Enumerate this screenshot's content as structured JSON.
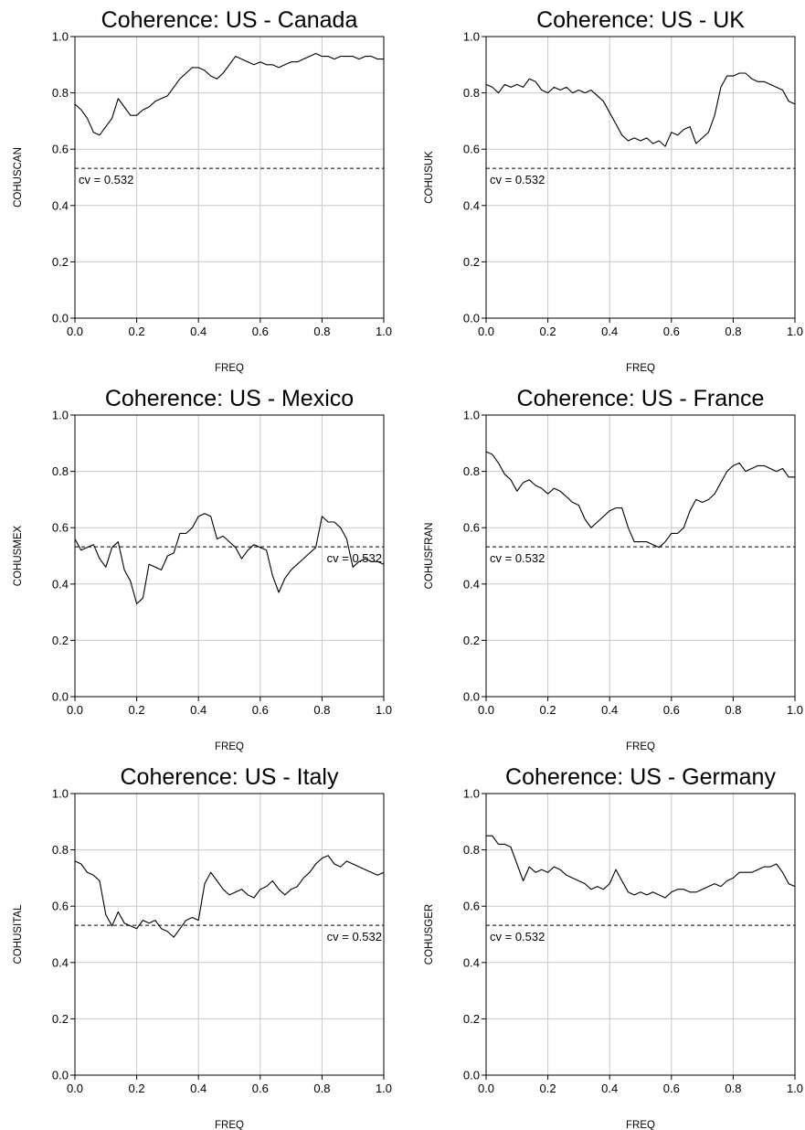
{
  "chart_data": [
    {
      "type": "line",
      "title": "Coherence: US - Canada",
      "xlabel": "FREQ",
      "ylabel": "COHUSCAN",
      "xlim": [
        0,
        1
      ],
      "ylim": [
        0,
        1
      ],
      "xticks": [
        "0.0",
        "0.2",
        "0.4",
        "0.6",
        "0.8",
        "1.0"
      ],
      "yticks": [
        "0.0",
        "0.2",
        "0.4",
        "0.6",
        "0.8",
        "1.0"
      ],
      "grid": true,
      "cv_value": 0.532,
      "cv_label": "cv = 0.532",
      "cv_label_position": "left-below",
      "series": [
        {
          "x": [
            0,
            0.02,
            0.04,
            0.06,
            0.08,
            0.1,
            0.12,
            0.14,
            0.16,
            0.18,
            0.2,
            0.22,
            0.24,
            0.26,
            0.28,
            0.3,
            0.32,
            0.34,
            0.36,
            0.38,
            0.4,
            0.42,
            0.44,
            0.46,
            0.48,
            0.5,
            0.52,
            0.54,
            0.56,
            0.58,
            0.6,
            0.62,
            0.64,
            0.66,
            0.68,
            0.7,
            0.72,
            0.74,
            0.76,
            0.78,
            0.8,
            0.82,
            0.84,
            0.86,
            0.88,
            0.9,
            0.92,
            0.94,
            0.96,
            0.98,
            1.0
          ],
          "y": [
            0.76,
            0.74,
            0.71,
            0.66,
            0.65,
            0.68,
            0.71,
            0.78,
            0.75,
            0.72,
            0.72,
            0.74,
            0.75,
            0.77,
            0.78,
            0.79,
            0.82,
            0.85,
            0.87,
            0.89,
            0.89,
            0.88,
            0.86,
            0.85,
            0.87,
            0.9,
            0.93,
            0.92,
            0.91,
            0.9,
            0.91,
            0.9,
            0.9,
            0.89,
            0.9,
            0.91,
            0.91,
            0.92,
            0.93,
            0.94,
            0.93,
            0.93,
            0.92,
            0.93,
            0.93,
            0.93,
            0.92,
            0.93,
            0.93,
            0.92,
            0.92
          ]
        }
      ]
    },
    {
      "type": "line",
      "title": "Coherence: US - UK",
      "xlabel": "FREQ",
      "ylabel": "COHUSUK",
      "xlim": [
        0,
        1
      ],
      "ylim": [
        0,
        1
      ],
      "xticks": [
        "0.0",
        "0.2",
        "0.4",
        "0.6",
        "0.8",
        "1.0"
      ],
      "yticks": [
        "0.0",
        "0.2",
        "0.4",
        "0.6",
        "0.8",
        "1.0"
      ],
      "grid": true,
      "cv_value": 0.532,
      "cv_label": "cv = 0.532",
      "cv_label_position": "left-below",
      "series": [
        {
          "x": [
            0,
            0.02,
            0.04,
            0.06,
            0.08,
            0.1,
            0.12,
            0.14,
            0.16,
            0.18,
            0.2,
            0.22,
            0.24,
            0.26,
            0.28,
            0.3,
            0.32,
            0.34,
            0.36,
            0.38,
            0.4,
            0.42,
            0.44,
            0.46,
            0.48,
            0.5,
            0.52,
            0.54,
            0.56,
            0.58,
            0.6,
            0.62,
            0.64,
            0.66,
            0.68,
            0.7,
            0.72,
            0.74,
            0.76,
            0.78,
            0.8,
            0.82,
            0.84,
            0.86,
            0.88,
            0.9,
            0.92,
            0.94,
            0.96,
            0.98,
            1.0
          ],
          "y": [
            0.83,
            0.82,
            0.8,
            0.83,
            0.82,
            0.83,
            0.82,
            0.85,
            0.84,
            0.81,
            0.8,
            0.82,
            0.81,
            0.82,
            0.8,
            0.81,
            0.8,
            0.81,
            0.79,
            0.77,
            0.73,
            0.69,
            0.65,
            0.63,
            0.64,
            0.63,
            0.64,
            0.62,
            0.63,
            0.61,
            0.66,
            0.65,
            0.67,
            0.68,
            0.62,
            0.64,
            0.66,
            0.72,
            0.82,
            0.86,
            0.86,
            0.87,
            0.87,
            0.85,
            0.84,
            0.84,
            0.83,
            0.82,
            0.81,
            0.77,
            0.76
          ]
        }
      ]
    },
    {
      "type": "line",
      "title": "Coherence: US - Mexico",
      "xlabel": "FREQ",
      "ylabel": "COHUSMEX",
      "xlim": [
        0,
        1
      ],
      "ylim": [
        0,
        1
      ],
      "xticks": [
        "0.0",
        "0.2",
        "0.4",
        "0.6",
        "0.8",
        "1.0"
      ],
      "yticks": [
        "0.0",
        "0.2",
        "0.4",
        "0.6",
        "0.8",
        "1.0"
      ],
      "grid": true,
      "cv_value": 0.532,
      "cv_label": "cv = 0.532",
      "cv_label_position": "right-below",
      "series": [
        {
          "x": [
            0,
            0.02,
            0.04,
            0.06,
            0.08,
            0.1,
            0.12,
            0.14,
            0.16,
            0.18,
            0.2,
            0.22,
            0.24,
            0.26,
            0.28,
            0.3,
            0.32,
            0.34,
            0.36,
            0.38,
            0.4,
            0.42,
            0.44,
            0.46,
            0.48,
            0.5,
            0.52,
            0.54,
            0.56,
            0.58,
            0.6,
            0.62,
            0.64,
            0.66,
            0.68,
            0.7,
            0.72,
            0.74,
            0.76,
            0.78,
            0.8,
            0.82,
            0.84,
            0.86,
            0.88,
            0.9,
            0.92,
            0.94,
            0.96,
            0.98,
            1.0
          ],
          "y": [
            0.56,
            0.52,
            0.53,
            0.54,
            0.49,
            0.46,
            0.53,
            0.55,
            0.45,
            0.41,
            0.33,
            0.35,
            0.47,
            0.46,
            0.45,
            0.5,
            0.51,
            0.58,
            0.58,
            0.6,
            0.64,
            0.65,
            0.64,
            0.56,
            0.57,
            0.55,
            0.53,
            0.49,
            0.52,
            0.54,
            0.53,
            0.52,
            0.43,
            0.37,
            0.42,
            0.45,
            0.47,
            0.49,
            0.51,
            0.53,
            0.64,
            0.62,
            0.62,
            0.6,
            0.56,
            0.46,
            0.48,
            0.49,
            0.48,
            0.48,
            0.47
          ]
        }
      ]
    },
    {
      "type": "line",
      "title": "Coherence: US - France",
      "xlabel": "FREQ",
      "ylabel": "COHUSFRAN",
      "xlim": [
        0,
        1
      ],
      "ylim": [
        0,
        1
      ],
      "xticks": [
        "0.0",
        "0.2",
        "0.4",
        "0.6",
        "0.8",
        "1.0"
      ],
      "yticks": [
        "0.0",
        "0.2",
        "0.4",
        "0.6",
        "0.8",
        "1.0"
      ],
      "grid": true,
      "cv_value": 0.532,
      "cv_label": "cv = 0.532",
      "cv_label_position": "left-below",
      "series": [
        {
          "x": [
            0,
            0.02,
            0.04,
            0.06,
            0.08,
            0.1,
            0.12,
            0.14,
            0.16,
            0.18,
            0.2,
            0.22,
            0.24,
            0.26,
            0.28,
            0.3,
            0.32,
            0.34,
            0.36,
            0.38,
            0.4,
            0.42,
            0.44,
            0.46,
            0.48,
            0.5,
            0.52,
            0.54,
            0.56,
            0.58,
            0.6,
            0.62,
            0.64,
            0.66,
            0.68,
            0.7,
            0.72,
            0.74,
            0.76,
            0.78,
            0.8,
            0.82,
            0.84,
            0.86,
            0.88,
            0.9,
            0.92,
            0.94,
            0.96,
            0.98,
            1.0
          ],
          "y": [
            0.87,
            0.86,
            0.83,
            0.79,
            0.77,
            0.73,
            0.76,
            0.77,
            0.75,
            0.74,
            0.72,
            0.74,
            0.73,
            0.71,
            0.69,
            0.68,
            0.63,
            0.6,
            0.62,
            0.64,
            0.66,
            0.67,
            0.67,
            0.6,
            0.55,
            0.55,
            0.55,
            0.54,
            0.53,
            0.55,
            0.58,
            0.58,
            0.6,
            0.66,
            0.7,
            0.69,
            0.7,
            0.72,
            0.76,
            0.8,
            0.82,
            0.83,
            0.8,
            0.81,
            0.82,
            0.82,
            0.81,
            0.8,
            0.81,
            0.78,
            0.78
          ]
        }
      ]
    },
    {
      "type": "line",
      "title": "Coherence: US - Italy",
      "xlabel": "FREQ",
      "ylabel": "COHUSITAL",
      "xlim": [
        0,
        1
      ],
      "ylim": [
        0,
        1
      ],
      "xticks": [
        "0.0",
        "0.2",
        "0.4",
        "0.6",
        "0.8",
        "1.0"
      ],
      "yticks": [
        "0.0",
        "0.2",
        "0.4",
        "0.6",
        "0.8",
        "1.0"
      ],
      "grid": true,
      "cv_value": 0.532,
      "cv_label": "cv = 0.532",
      "cv_label_position": "right-below",
      "series": [
        {
          "x": [
            0,
            0.02,
            0.04,
            0.06,
            0.08,
            0.1,
            0.12,
            0.14,
            0.16,
            0.18,
            0.2,
            0.22,
            0.24,
            0.26,
            0.28,
            0.3,
            0.32,
            0.34,
            0.36,
            0.38,
            0.4,
            0.42,
            0.44,
            0.46,
            0.48,
            0.5,
            0.52,
            0.54,
            0.56,
            0.58,
            0.6,
            0.62,
            0.64,
            0.66,
            0.68,
            0.7,
            0.72,
            0.74,
            0.76,
            0.78,
            0.8,
            0.82,
            0.84,
            0.86,
            0.88,
            0.9,
            0.92,
            0.94,
            0.96,
            0.98,
            1.0
          ],
          "y": [
            0.76,
            0.75,
            0.72,
            0.71,
            0.69,
            0.57,
            0.53,
            0.58,
            0.54,
            0.53,
            0.52,
            0.55,
            0.54,
            0.55,
            0.52,
            0.51,
            0.49,
            0.52,
            0.55,
            0.56,
            0.55,
            0.68,
            0.72,
            0.69,
            0.66,
            0.64,
            0.65,
            0.66,
            0.64,
            0.63,
            0.66,
            0.67,
            0.69,
            0.66,
            0.64,
            0.66,
            0.67,
            0.7,
            0.72,
            0.75,
            0.77,
            0.78,
            0.75,
            0.74,
            0.76,
            0.75,
            0.74,
            0.73,
            0.72,
            0.71,
            0.72
          ]
        }
      ]
    },
    {
      "type": "line",
      "title": "Coherence: US - Germany",
      "xlabel": "FREQ",
      "ylabel": "COHUSGER",
      "xlim": [
        0,
        1
      ],
      "ylim": [
        0,
        1
      ],
      "xticks": [
        "0.0",
        "0.2",
        "0.4",
        "0.6",
        "0.8",
        "1.0"
      ],
      "yticks": [
        "0.0",
        "0.2",
        "0.4",
        "0.6",
        "0.8",
        "1.0"
      ],
      "grid": true,
      "cv_value": 0.532,
      "cv_label": "cv = 0.532",
      "cv_label_position": "left-below",
      "series": [
        {
          "x": [
            0,
            0.02,
            0.04,
            0.06,
            0.08,
            0.1,
            0.12,
            0.14,
            0.16,
            0.18,
            0.2,
            0.22,
            0.24,
            0.26,
            0.28,
            0.3,
            0.32,
            0.34,
            0.36,
            0.38,
            0.4,
            0.42,
            0.44,
            0.46,
            0.48,
            0.5,
            0.52,
            0.54,
            0.56,
            0.58,
            0.6,
            0.62,
            0.64,
            0.66,
            0.68,
            0.7,
            0.72,
            0.74,
            0.76,
            0.78,
            0.8,
            0.82,
            0.84,
            0.86,
            0.88,
            0.9,
            0.92,
            0.94,
            0.96,
            0.98,
            1.0
          ],
          "y": [
            0.85,
            0.85,
            0.82,
            0.82,
            0.81,
            0.75,
            0.69,
            0.74,
            0.72,
            0.73,
            0.72,
            0.74,
            0.73,
            0.71,
            0.7,
            0.69,
            0.68,
            0.66,
            0.67,
            0.66,
            0.68,
            0.73,
            0.69,
            0.65,
            0.64,
            0.65,
            0.64,
            0.65,
            0.64,
            0.63,
            0.65,
            0.66,
            0.66,
            0.65,
            0.65,
            0.66,
            0.67,
            0.68,
            0.67,
            0.69,
            0.7,
            0.72,
            0.72,
            0.72,
            0.73,
            0.74,
            0.74,
            0.75,
            0.72,
            0.68,
            0.67
          ]
        }
      ]
    }
  ]
}
